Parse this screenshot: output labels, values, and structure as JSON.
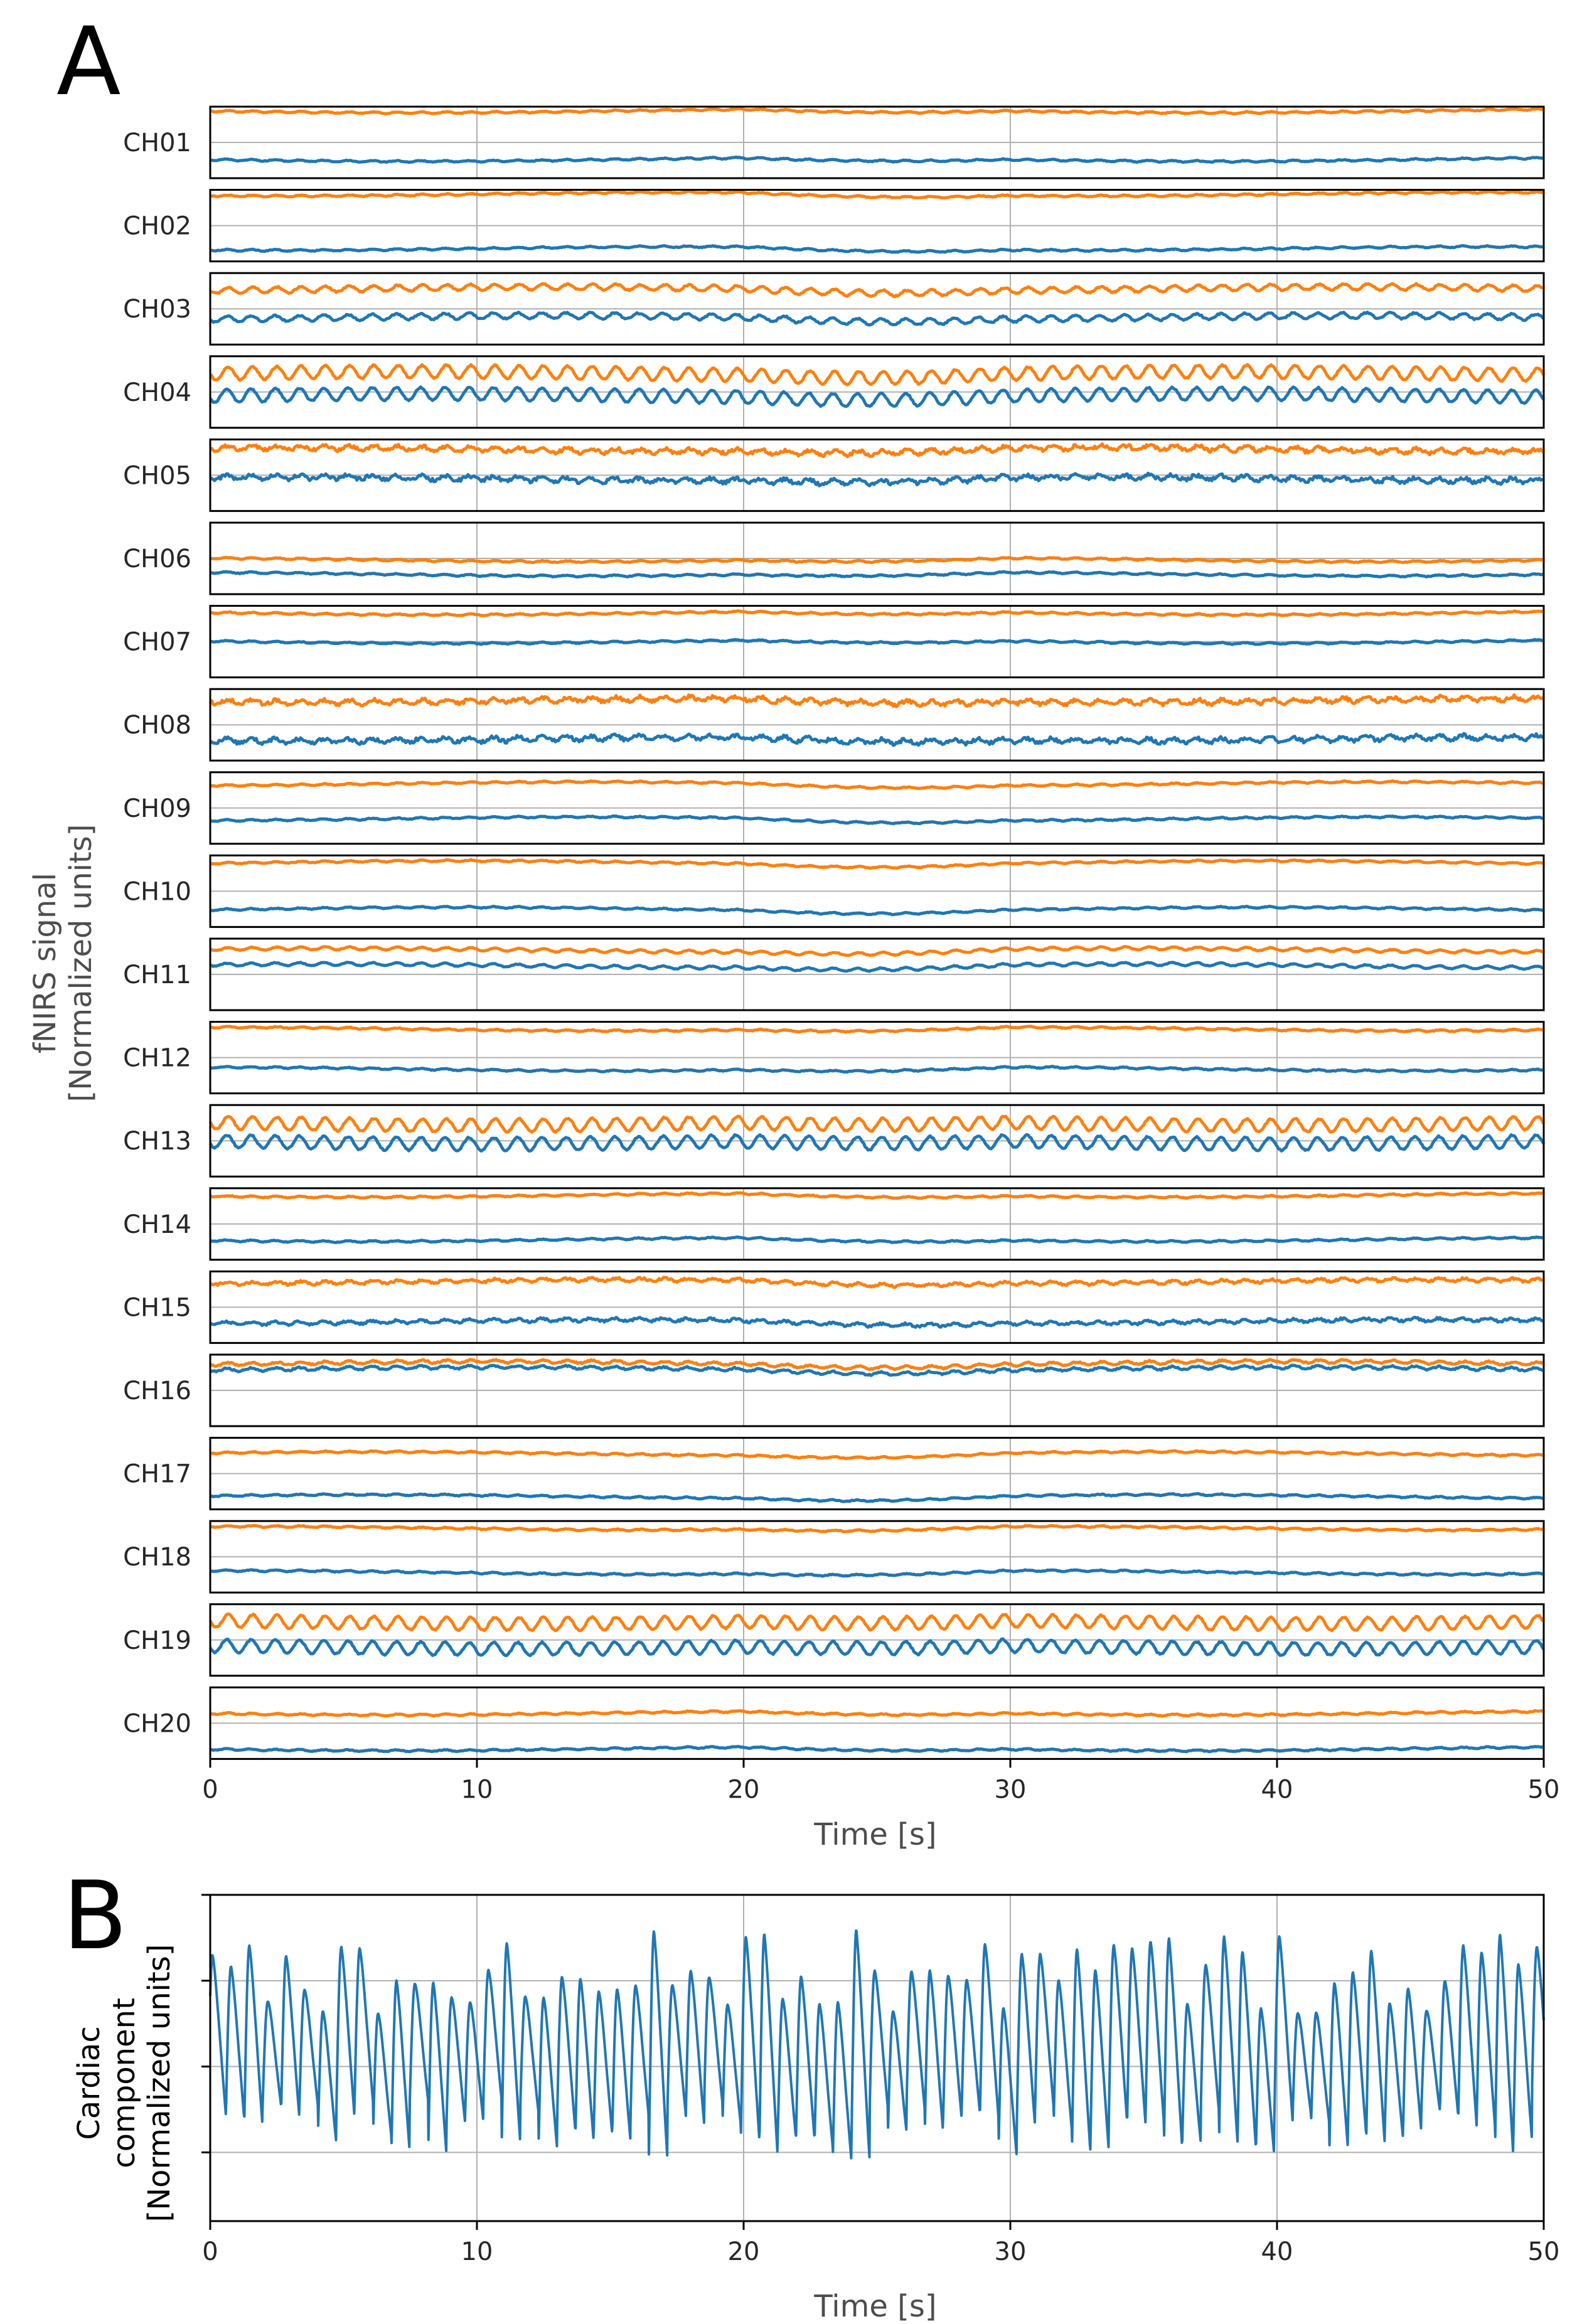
{
  "panels": {
    "a": {
      "letter": "A"
    },
    "b": {
      "letter": "B"
    }
  },
  "chart_data": [
    {
      "type": "line",
      "panel": "A",
      "xlabel": "Time [s]",
      "ylabel_line1": "fNIRS signal",
      "ylabel_line2": "[Normalized units]",
      "xlim": [
        0,
        50
      ],
      "xticks": [
        0,
        10,
        20,
        30,
        40,
        50
      ],
      "xtick_labels": [
        "0",
        "10",
        "20",
        "30",
        "40",
        "50"
      ],
      "grid": true,
      "channels": [
        "CH01",
        "CH02",
        "CH03",
        "CH04",
        "CH05",
        "CH06",
        "CH07",
        "CH08",
        "CH09",
        "CH10",
        "CH11",
        "CH12",
        "CH13",
        "CH14",
        "CH15",
        "CH16",
        "CH17",
        "CH18",
        "CH19",
        "CH20"
      ],
      "series_colors": [
        "#ff7f0e",
        "#1f77b4"
      ],
      "channel_levels": [
        [
          0.06,
          0.74
        ],
        [
          0.06,
          0.82
        ],
        [
          0.22,
          0.62
        ],
        [
          0.24,
          0.55
        ],
        [
          0.14,
          0.55
        ],
        [
          0.52,
          0.72
        ],
        [
          0.1,
          0.5
        ],
        [
          0.16,
          0.7
        ],
        [
          0.16,
          0.65
        ],
        [
          0.1,
          0.75
        ],
        [
          0.16,
          0.38
        ],
        [
          0.1,
          0.66
        ],
        [
          0.26,
          0.52
        ],
        [
          0.1,
          0.72
        ],
        [
          0.14,
          0.7
        ],
        [
          0.12,
          0.2
        ],
        [
          0.22,
          0.82
        ],
        [
          0.1,
          0.72
        ],
        [
          0.25,
          0.6
        ],
        [
          0.36,
          0.86
        ]
      ],
      "cardiac_amplitude": [
        0.01,
        0.01,
        0.04,
        0.09,
        0.03,
        0.01,
        0.01,
        0.03,
        0.01,
        0.01,
        0.02,
        0.01,
        0.09,
        0.01,
        0.02,
        0.02,
        0.01,
        0.01,
        0.09,
        0.01
      ],
      "noise_amplitude": [
        0.01,
        0.01,
        0.02,
        0.02,
        0.05,
        0.01,
        0.01,
        0.05,
        0.01,
        0.01,
        0.01,
        0.01,
        0.02,
        0.01,
        0.03,
        0.02,
        0.01,
        0.01,
        0.02,
        0.01
      ]
    },
    {
      "type": "line",
      "panel": "B",
      "xlabel": "Time [s]",
      "ylabel_line1": "Cardiac",
      "ylabel_line2": "component",
      "ylabel_line3": "[Normalized units]",
      "xlim": [
        0,
        50
      ],
      "ylim": [
        -1.8,
        2.0
      ],
      "xticks": [
        0,
        10,
        20,
        30,
        40,
        50
      ],
      "xtick_labels": [
        "0",
        "10",
        "20",
        "30",
        "40",
        "50"
      ],
      "yticks": [
        -1,
        0,
        1,
        2
      ],
      "grid": true,
      "color": "#1f77b4",
      "heart_rate_hz": 1.45,
      "peak_range": [
        0.6,
        1.6
      ],
      "trough_range": [
        -0.4,
        -1.1
      ]
    }
  ]
}
